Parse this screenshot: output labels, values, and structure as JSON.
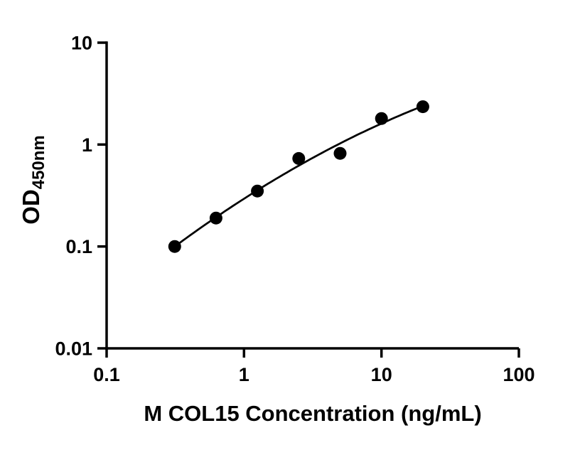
{
  "chart_data": {
    "type": "scatter",
    "title": "",
    "xlabel": "M COL15 Concentration (ng/mL)",
    "ylabel_main": "OD",
    "ylabel_sub": "450nm",
    "x": [
      0.313,
      0.625,
      1.25,
      2.5,
      5,
      10,
      20
    ],
    "y": [
      0.1,
      0.19,
      0.35,
      0.73,
      0.82,
      1.8,
      2.35
    ],
    "x_scale": "log",
    "y_scale": "log",
    "xlim": [
      0.1,
      100
    ],
    "ylim": [
      0.01,
      10
    ],
    "x_ticks": [
      0.1,
      1,
      10,
      100
    ],
    "x_tick_labels": [
      "0.1",
      "1",
      "10",
      "100"
    ],
    "y_ticks": [
      0.01,
      0.1,
      1,
      10
    ],
    "y_tick_labels": [
      "0.01",
      "0.1",
      "1",
      "10"
    ],
    "grid": false,
    "legend": false,
    "fit_curve": "smooth-fit-through-points",
    "marker_color": "#000000",
    "line_color": "#000000",
    "background_color": "#ffffff"
  }
}
